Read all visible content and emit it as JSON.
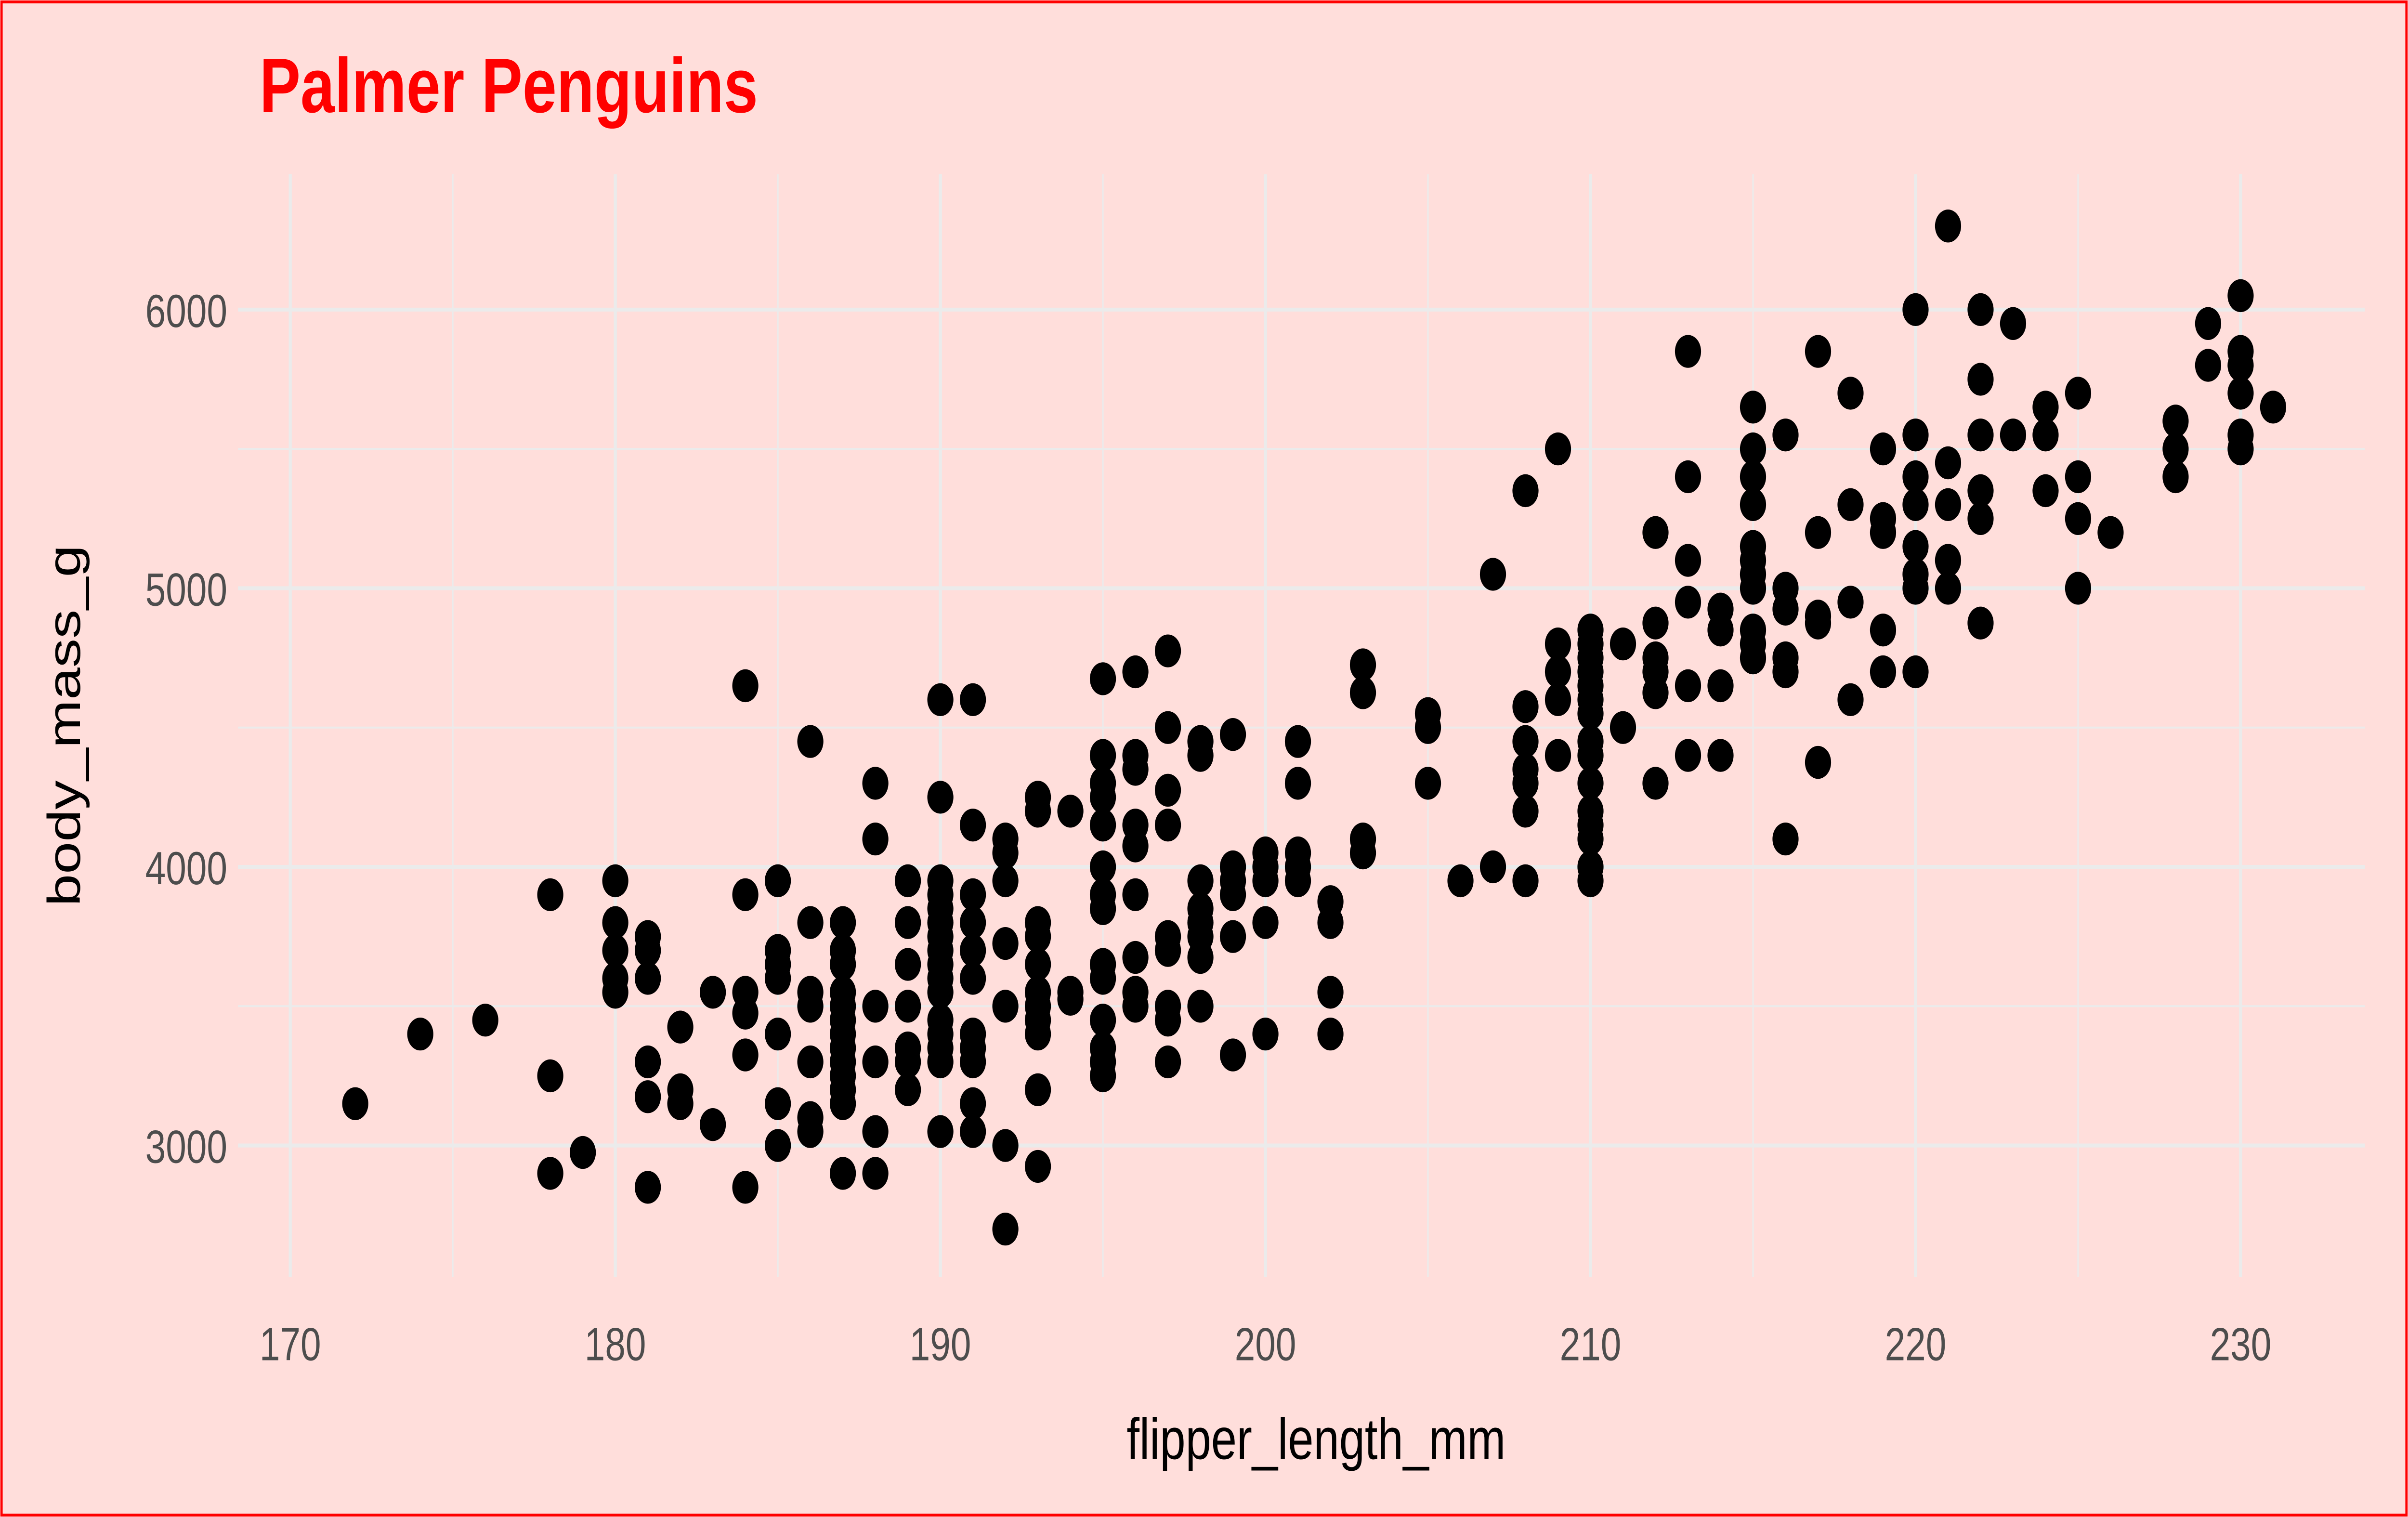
{
  "chart_data": {
    "type": "scatter",
    "title": "Palmer Penguins",
    "xlabel": "flipper_length_mm",
    "ylabel": "body_mass_g",
    "xlim": [
      170,
      232
    ],
    "ylim": [
      2550,
      6480
    ],
    "x_ticks": [
      170,
      180,
      190,
      200,
      210,
      220,
      230
    ],
    "y_ticks": [
      3000,
      4000,
      5000,
      6000
    ],
    "grid": true,
    "colors": {
      "background": "#FFDEDB",
      "border": "#FF0000",
      "title": "#FF0000",
      "points": "#000000",
      "grid": "#EBEBEB"
    },
    "points": [
      [
        172,
        3150
      ],
      [
        174,
        3400
      ],
      [
        176,
        3450
      ],
      [
        178,
        3900
      ],
      [
        178,
        3250
      ],
      [
        178,
        2900
      ],
      [
        179,
        2975
      ],
      [
        180,
        3950
      ],
      [
        180,
        3800
      ],
      [
        180,
        3700
      ],
      [
        180,
        3600
      ],
      [
        180,
        3550
      ],
      [
        181,
        3750
      ],
      [
        181,
        3700
      ],
      [
        181,
        3600
      ],
      [
        181,
        3300
      ],
      [
        181,
        3175
      ],
      [
        181,
        2850
      ],
      [
        182,
        3425
      ],
      [
        182,
        3200
      ],
      [
        182,
        3150
      ],
      [
        183,
        3550
      ],
      [
        183,
        3075
      ],
      [
        184,
        4650
      ],
      [
        184,
        3900
      ],
      [
        184,
        3550
      ],
      [
        184,
        3475
      ],
      [
        184,
        3325
      ],
      [
        184,
        2850
      ],
      [
        185,
        3950
      ],
      [
        185,
        3700
      ],
      [
        185,
        3650
      ],
      [
        185,
        3600
      ],
      [
        185,
        3400
      ],
      [
        185,
        3150
      ],
      [
        185,
        3000
      ],
      [
        186,
        4450
      ],
      [
        186,
        3800
      ],
      [
        186,
        3550
      ],
      [
        186,
        3500
      ],
      [
        186,
        3300
      ],
      [
        186,
        3100
      ],
      [
        186,
        3050
      ],
      [
        187,
        3800
      ],
      [
        187,
        3700
      ],
      [
        187,
        3650
      ],
      [
        187,
        3550
      ],
      [
        187,
        3500
      ],
      [
        187,
        3450
      ],
      [
        187,
        3400
      ],
      [
        187,
        3350
      ],
      [
        187,
        3300
      ],
      [
        187,
        3250
      ],
      [
        187,
        3200
      ],
      [
        187,
        3150
      ],
      [
        187,
        2900
      ],
      [
        188,
        4300
      ],
      [
        188,
        4100
      ],
      [
        188,
        3500
      ],
      [
        188,
        3300
      ],
      [
        188,
        3050
      ],
      [
        188,
        2900
      ],
      [
        189,
        3950
      ],
      [
        189,
        3800
      ],
      [
        189,
        3650
      ],
      [
        189,
        3500
      ],
      [
        189,
        3350
      ],
      [
        189,
        3300
      ],
      [
        189,
        3200
      ],
      [
        190,
        4600
      ],
      [
        190,
        4250
      ],
      [
        190,
        3950
      ],
      [
        190,
        3900
      ],
      [
        190,
        3850
      ],
      [
        190,
        3800
      ],
      [
        190,
        3750
      ],
      [
        190,
        3700
      ],
      [
        190,
        3650
      ],
      [
        190,
        3600
      ],
      [
        190,
        3550
      ],
      [
        190,
        3450
      ],
      [
        190,
        3400
      ],
      [
        190,
        3350
      ],
      [
        190,
        3300
      ],
      [
        190,
        3050
      ],
      [
        191,
        4600
      ],
      [
        191,
        4150
      ],
      [
        191,
        3900
      ],
      [
        191,
        3800
      ],
      [
        191,
        3700
      ],
      [
        191,
        3600
      ],
      [
        191,
        3400
      ],
      [
        191,
        3350
      ],
      [
        191,
        3300
      ],
      [
        191,
        3150
      ],
      [
        191,
        3050
      ],
      [
        192,
        4100
      ],
      [
        192,
        4050
      ],
      [
        192,
        3950
      ],
      [
        192,
        3725
      ],
      [
        192,
        3500
      ],
      [
        192,
        3000
      ],
      [
        192,
        2700
      ],
      [
        193,
        4250
      ],
      [
        193,
        4200
      ],
      [
        193,
        3800
      ],
      [
        193,
        3750
      ],
      [
        193,
        3650
      ],
      [
        193,
        3550
      ],
      [
        193,
        3500
      ],
      [
        193,
        3450
      ],
      [
        193,
        3400
      ],
      [
        193,
        3200
      ],
      [
        193,
        2925
      ],
      [
        194,
        4200
      ],
      [
        194,
        3550
      ],
      [
        194,
        3525
      ],
      [
        195,
        4675
      ],
      [
        195,
        4400
      ],
      [
        195,
        4300
      ],
      [
        195,
        4250
      ],
      [
        195,
        4150
      ],
      [
        195,
        4000
      ],
      [
        195,
        3900
      ],
      [
        195,
        3850
      ],
      [
        195,
        3650
      ],
      [
        195,
        3600
      ],
      [
        195,
        3450
      ],
      [
        195,
        3350
      ],
      [
        195,
        3300
      ],
      [
        195,
        3250
      ],
      [
        196,
        4700
      ],
      [
        196,
        4400
      ],
      [
        196,
        4350
      ],
      [
        196,
        4150
      ],
      [
        196,
        4075
      ],
      [
        196,
        3900
      ],
      [
        196,
        3675
      ],
      [
        196,
        3550
      ],
      [
        196,
        3500
      ],
      [
        197,
        4775
      ],
      [
        197,
        4500
      ],
      [
        197,
        4275
      ],
      [
        197,
        4150
      ],
      [
        197,
        3750
      ],
      [
        197,
        3700
      ],
      [
        197,
        3500
      ],
      [
        197,
        3450
      ],
      [
        197,
        3300
      ],
      [
        198,
        4450
      ],
      [
        198,
        4400
      ],
      [
        198,
        3950
      ],
      [
        198,
        3850
      ],
      [
        198,
        3800
      ],
      [
        198,
        3750
      ],
      [
        198,
        3675
      ],
      [
        198,
        3500
      ],
      [
        199,
        4475
      ],
      [
        199,
        4000
      ],
      [
        199,
        3950
      ],
      [
        199,
        3900
      ],
      [
        199,
        3750
      ],
      [
        199,
        3325
      ],
      [
        200,
        4050
      ],
      [
        200,
        4000
      ],
      [
        200,
        3950
      ],
      [
        200,
        3800
      ],
      [
        200,
        3400
      ],
      [
        201,
        4450
      ],
      [
        201,
        4300
      ],
      [
        201,
        4050
      ],
      [
        201,
        4000
      ],
      [
        201,
        3950
      ],
      [
        202,
        3875
      ],
      [
        202,
        3800
      ],
      [
        202,
        3550
      ],
      [
        202,
        3400
      ],
      [
        203,
        4725
      ],
      [
        203,
        4625
      ],
      [
        203,
        4100
      ],
      [
        203,
        4050
      ],
      [
        205,
        4550
      ],
      [
        205,
        4500
      ],
      [
        205,
        4300
      ],
      [
        206,
        3950
      ],
      [
        207,
        5050
      ],
      [
        207,
        4000
      ],
      [
        208,
        5350
      ],
      [
        208,
        4575
      ],
      [
        208,
        4450
      ],
      [
        208,
        4350
      ],
      [
        208,
        4300
      ],
      [
        208,
        4200
      ],
      [
        208,
        3950
      ],
      [
        209,
        5500
      ],
      [
        209,
        4800
      ],
      [
        209,
        4700
      ],
      [
        209,
        4600
      ],
      [
        209,
        4400
      ],
      [
        210,
        4850
      ],
      [
        210,
        4800
      ],
      [
        210,
        4750
      ],
      [
        210,
        4700
      ],
      [
        210,
        4650
      ],
      [
        210,
        4600
      ],
      [
        210,
        4550
      ],
      [
        210,
        4450
      ],
      [
        210,
        4400
      ],
      [
        210,
        4300
      ],
      [
        210,
        4200
      ],
      [
        210,
        4150
      ],
      [
        210,
        4100
      ],
      [
        210,
        4000
      ],
      [
        210,
        3950
      ],
      [
        211,
        4800
      ],
      [
        211,
        4500
      ],
      [
        212,
        5200
      ],
      [
        212,
        4875
      ],
      [
        212,
        4750
      ],
      [
        212,
        4700
      ],
      [
        212,
        4625
      ],
      [
        212,
        4300
      ],
      [
        213,
        5850
      ],
      [
        213,
        5400
      ],
      [
        213,
        5100
      ],
      [
        213,
        4950
      ],
      [
        213,
        4650
      ],
      [
        213,
        4400
      ],
      [
        214,
        4925
      ],
      [
        214,
        4850
      ],
      [
        214,
        4650
      ],
      [
        214,
        4400
      ],
      [
        215,
        5650
      ],
      [
        215,
        5500
      ],
      [
        215,
        5400
      ],
      [
        215,
        5300
      ],
      [
        215,
        5150
      ],
      [
        215,
        5100
      ],
      [
        215,
        5050
      ],
      [
        215,
        5000
      ],
      [
        215,
        4850
      ],
      [
        215,
        4800
      ],
      [
        215,
        4750
      ],
      [
        216,
        5550
      ],
      [
        216,
        5000
      ],
      [
        216,
        4925
      ],
      [
        216,
        4750
      ],
      [
        216,
        4700
      ],
      [
        216,
        4100
      ],
      [
        217,
        5850
      ],
      [
        217,
        5200
      ],
      [
        217,
        4900
      ],
      [
        217,
        4875
      ],
      [
        217,
        4375
      ],
      [
        218,
        5700
      ],
      [
        218,
        5300
      ],
      [
        218,
        4950
      ],
      [
        218,
        4600
      ],
      [
        219,
        5500
      ],
      [
        219,
        5250
      ],
      [
        219,
        5200
      ],
      [
        219,
        4850
      ],
      [
        219,
        4700
      ],
      [
        220,
        6000
      ],
      [
        220,
        5550
      ],
      [
        220,
        5400
      ],
      [
        220,
        5300
      ],
      [
        220,
        5150
      ],
      [
        220,
        5050
      ],
      [
        220,
        5000
      ],
      [
        220,
        4700
      ],
      [
        221,
        6300
      ],
      [
        221,
        5450
      ],
      [
        221,
        5300
      ],
      [
        221,
        5100
      ],
      [
        221,
        5000
      ],
      [
        222,
        6000
      ],
      [
        222,
        5750
      ],
      [
        222,
        5550
      ],
      [
        222,
        5350
      ],
      [
        222,
        5250
      ],
      [
        222,
        4875
      ],
      [
        223,
        5950
      ],
      [
        223,
        5550
      ],
      [
        224,
        5650
      ],
      [
        224,
        5550
      ],
      [
        224,
        5350
      ],
      [
        225,
        5700
      ],
      [
        225,
        5400
      ],
      [
        225,
        5250
      ],
      [
        225,
        5000
      ],
      [
        226,
        5200
      ],
      [
        228,
        5600
      ],
      [
        228,
        5500
      ],
      [
        228,
        5400
      ],
      [
        229,
        5950
      ],
      [
        229,
        5800
      ],
      [
        230,
        6050
      ],
      [
        230,
        5850
      ],
      [
        230,
        5800
      ],
      [
        230,
        5700
      ],
      [
        230,
        5550
      ],
      [
        230,
        5500
      ],
      [
        231,
        5650
      ]
    ]
  }
}
